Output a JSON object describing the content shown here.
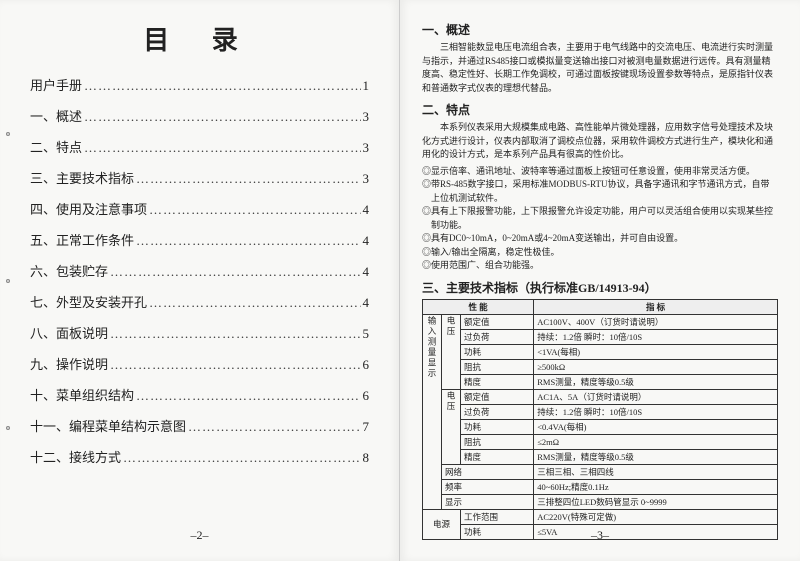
{
  "left": {
    "title": "目 录",
    "toc": [
      {
        "label": "用户手册",
        "page": "1"
      },
      {
        "label": "一、概述",
        "page": "3"
      },
      {
        "label": "二、特点",
        "page": "3"
      },
      {
        "label": "三、主要技术指标",
        "page": "3"
      },
      {
        "label": "四、使用及注意事项",
        "page": "4"
      },
      {
        "label": "五、正常工作条件",
        "page": "4"
      },
      {
        "label": "六、包装贮存",
        "page": "4"
      },
      {
        "label": "七、外型及安装开孔",
        "page": "4"
      },
      {
        "label": "八、面板说明",
        "page": "5"
      },
      {
        "label": "九、操作说明",
        "page": "6"
      },
      {
        "label": "十、菜单组织结构",
        "page": "6"
      },
      {
        "label": "十一、编程菜单结构示意图",
        "page": "7"
      },
      {
        "label": "十二、接线方式",
        "page": "8"
      }
    ],
    "pageNum": "–2–"
  },
  "right": {
    "sec1": {
      "title": "一、概述",
      "text": "三相智能数显电压电流组合表，主要用于电气线路中的交流电压、电流进行实时测量与指示，并通过RS485接口或模拟量变送输出接口对被测电量数据进行远传。具有测量精度高、稳定性好、长期工作免调校，可通过面板按键现场设置参数等特点，是原指针仪表和普通数字式仪表的理想代替品。"
    },
    "sec2": {
      "title": "二、特点",
      "intro": "本系列仪表采用大规模集成电路、高性能单片微处理器，应用数字信号处理技术及块化方式进行设计，仪表内部取消了调校点位器，采用软件调校方式进行生产，模块化和通用化的设计方式，是本系列产品具有很高的性价比。",
      "bullets": [
        "◎显示倍率、通讯地址、波特率等通过面板上按钮可任意设置，使用非常灵活方便。",
        "◎带RS-485数字接口，采用标准MODBUS-RTU协议，具备字通讯和字节通讯方式，自带上位机测试软件。",
        "◎具有上下限报警功能，上下限报警允许设定功能，用户可以灵活组合使用以实现某些控制功能。",
        "◎具有DC0~10mA，0~20mA或4~20mA变送输出，并可自由设置。",
        "◎输入/输出全隔离，稳定性极佳。",
        "◎使用范围广、组合功能强。"
      ]
    },
    "sec3": {
      "title": "三、主要技术指标（执行标准GB/14913-94）",
      "headers": [
        "性 能",
        "指 标"
      ],
      "group1": "输入测量显示",
      "sub1": "电压",
      "sub2": "电压",
      "rows1": [
        [
          "额定值",
          "AC100V、400V（订货时请说明）"
        ],
        [
          "过负荷",
          "持续：1.2倍  瞬时：10倍/10S"
        ],
        [
          "功耗",
          "<1VA(每相)"
        ],
        [
          "阻抗",
          "≥500kΩ"
        ],
        [
          "精度",
          "RMS测量，精度等级0.5级"
        ]
      ],
      "rows2": [
        [
          "额定值",
          "AC1A、5A（订货时请说明）"
        ],
        [
          "过负荷",
          "持续：1.2倍  瞬时：10倍/10S"
        ],
        [
          "功耗",
          "<0.4VA(每相)"
        ],
        [
          "阻抗",
          "≤2mΩ"
        ],
        [
          "精度",
          "RMS测量，精度等级0.5级"
        ]
      ],
      "netRows": [
        [
          "网络",
          "三相三相、三相四线"
        ],
        [
          "频率",
          "40~60Hz;精度0.1Hz"
        ],
        [
          "显示",
          "三排整四位LED数码管显示  0~9999"
        ]
      ],
      "group2": "电源",
      "psRows": [
        [
          "工作范围",
          "AC220V(特殊可定做)"
        ],
        [
          "功耗",
          "≤5VA"
        ]
      ]
    },
    "pageNum": "–3–"
  }
}
